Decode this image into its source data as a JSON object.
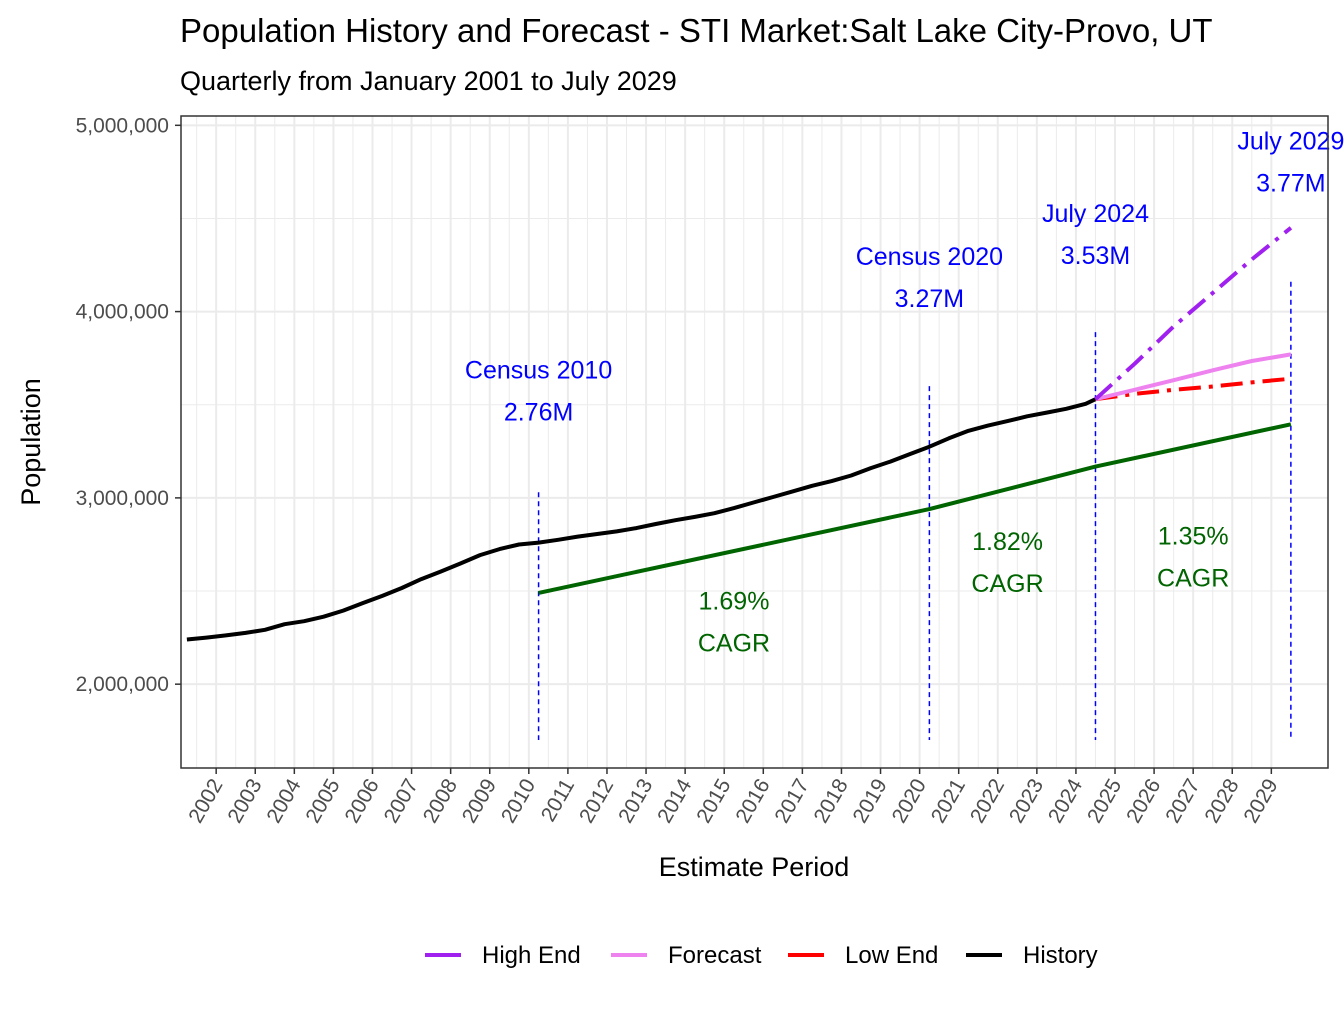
{
  "chart_data": {
    "type": "line",
    "title": "Population History and Forecast - STI Market:Salt Lake City-Provo, UT",
    "subtitle": "Quarterly from January 2001 to July 2029",
    "xlabel": "Estimate Period",
    "ylabel": "Population",
    "ylim": [
      1550000,
      5050000
    ],
    "xlim": [
      2001.1,
      2030.45
    ],
    "y_ticks": [
      {
        "value": 2000000,
        "label": "2,000,000"
      },
      {
        "value": 3000000,
        "label": "3,000,000"
      },
      {
        "value": 4000000,
        "label": "4,000,000"
      },
      {
        "value": 5000000,
        "label": "5,000,000"
      }
    ],
    "x_ticks": [
      "2002",
      "2003",
      "2004",
      "2005",
      "2006",
      "2007",
      "2008",
      "2009",
      "2010",
      "2011",
      "2012",
      "2013",
      "2014",
      "2015",
      "2016",
      "2017",
      "2018",
      "2019",
      "2020",
      "2021",
      "2022",
      "2023",
      "2024",
      "2025",
      "2026",
      "2027",
      "2028",
      "2029"
    ],
    "grid": true,
    "legend_position": "bottom",
    "series": [
      {
        "name": "History",
        "color": "#000000",
        "dash": "solid",
        "x": [
          2001.25,
          2001.75,
          2002.25,
          2002.75,
          2003.25,
          2003.75,
          2004.25,
          2004.75,
          2005.25,
          2005.75,
          2006.25,
          2006.75,
          2007.25,
          2007.75,
          2008.25,
          2008.75,
          2009.25,
          2009.75,
          2010.25,
          2010.75,
          2011.25,
          2011.75,
          2012.25,
          2012.75,
          2013.25,
          2013.75,
          2014.25,
          2014.75,
          2015.25,
          2015.75,
          2016.25,
          2016.75,
          2017.25,
          2017.75,
          2018.25,
          2018.75,
          2019.25,
          2019.75,
          2020.25,
          2020.75,
          2021.25,
          2021.75,
          2022.25,
          2022.75,
          2023.25,
          2023.75,
          2024.25,
          2024.5
        ],
        "y": [
          2240000,
          2250000,
          2262000,
          2275000,
          2292000,
          2322000,
          2338000,
          2362000,
          2395000,
          2435000,
          2474000,
          2516000,
          2564000,
          2605000,
          2648000,
          2693000,
          2725000,
          2750000,
          2760000,
          2775000,
          2792000,
          2806000,
          2820000,
          2838000,
          2860000,
          2880000,
          2898000,
          2918000,
          2945000,
          2975000,
          3005000,
          3035000,
          3065000,
          3090000,
          3120000,
          3160000,
          3195000,
          3235000,
          3275000,
          3320000,
          3360000,
          3388000,
          3412000,
          3438000,
          3458000,
          3478000,
          3505000,
          3530000
        ]
      },
      {
        "name": "Forecast",
        "color": "#ee82ee",
        "dash": "solid",
        "x": [
          2024.5,
          2025.5,
          2026.5,
          2027.5,
          2028.5,
          2029.5
        ],
        "y": [
          3530000,
          3580000,
          3632000,
          3685000,
          3735000,
          3770000
        ]
      },
      {
        "name": "High End",
        "color": "#a020f0",
        "dash": "dashdot",
        "x": [
          2024.5,
          2025.5,
          2026.5,
          2027.5,
          2028.5,
          2029.5
        ],
        "y": [
          3530000,
          3720000,
          3920000,
          4100000,
          4280000,
          4450000
        ]
      },
      {
        "name": "Low End",
        "color": "#ff0000",
        "dash": "dashdot",
        "x": [
          2024.5,
          2025.5,
          2026.5,
          2027.5,
          2028.5,
          2029.5
        ],
        "y": [
          3530000,
          3558000,
          3580000,
          3598000,
          3620000,
          3640000
        ]
      },
      {
        "color": "#006400",
        "dash": "solid",
        "x": [
          2010.25,
          2020.25,
          2024.5,
          2029.5
        ],
        "y": [
          2490000,
          2940000,
          3168000,
          3395000
        ]
      }
    ],
    "legend": [
      {
        "label": "High End",
        "color": "#a020f0"
      },
      {
        "label": "Forecast",
        "color": "#ee82ee"
      },
      {
        "label": "Low End",
        "color": "#ff0000"
      },
      {
        "label": "History",
        "color": "#000000"
      }
    ],
    "vlines": [
      {
        "x": 2010.25,
        "y_top": 3030000
      },
      {
        "x": 2020.25,
        "y_top": 3600000
      },
      {
        "x": 2024.5,
        "y_top": 3890000
      },
      {
        "x": 2029.5,
        "y_top": 4160000
      }
    ],
    "annotations": [
      {
        "lines": [
          "Census 2010",
          "2.76M"
        ],
        "x": 2010.25,
        "y": 3640000,
        "color": "#0000ff"
      },
      {
        "lines": [
          "Census 2020",
          "3.27M"
        ],
        "x": 2020.25,
        "y": 4250000,
        "color": "#0000ff"
      },
      {
        "lines": [
          "July 2024",
          "3.53M"
        ],
        "x": 2024.5,
        "y": 4480000,
        "color": "#0000ff"
      },
      {
        "lines": [
          "July 2029",
          "3.77M"
        ],
        "x": 2029.5,
        "y": 4870000,
        "color": "#0000ff"
      },
      {
        "lines": [
          "1.69%",
          "CAGR"
        ],
        "x": 2015.25,
        "y": 2400000,
        "color": "#006400"
      },
      {
        "lines": [
          "1.82%",
          "CAGR"
        ],
        "x": 2022.25,
        "y": 2720000,
        "color": "#006400"
      },
      {
        "lines": [
          "1.35%",
          "CAGR"
        ],
        "x": 2027.0,
        "y": 2750000,
        "color": "#006400"
      }
    ]
  }
}
